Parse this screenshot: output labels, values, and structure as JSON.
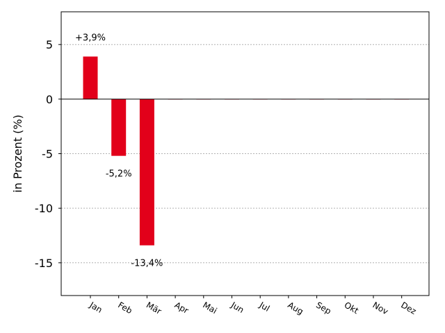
{
  "chart_data": {
    "type": "bar",
    "title": "",
    "xlabel": "",
    "ylabel": "in Prozent (%)",
    "categories": [
      "Jan",
      "Feb",
      "Mär",
      "Apr",
      "Mai",
      "Jun",
      "Jul",
      "Aug",
      "Sep",
      "Okt",
      "Nov",
      "Dez"
    ],
    "values": [
      3.9,
      -5.2,
      -13.4,
      0,
      0,
      0,
      0,
      0,
      0,
      0,
      0,
      0
    ],
    "data_labels": [
      "+3,9%",
      "-5,2%",
      "-13,4%",
      "",
      "",
      "",
      "",
      "",
      "",
      "",
      "",
      ""
    ],
    "yticks": [
      5,
      0,
      -5,
      -10,
      -15
    ],
    "ytick_labels": [
      "5",
      "0",
      "-5",
      "-10",
      "-15"
    ],
    "ylim": [
      -18,
      8
    ],
    "grid": "horizontal, dotted",
    "legend": "none",
    "colors": {
      "bar": "#e2001a",
      "grid": "#b0b0b0",
      "zero_line": "#000000"
    }
  }
}
